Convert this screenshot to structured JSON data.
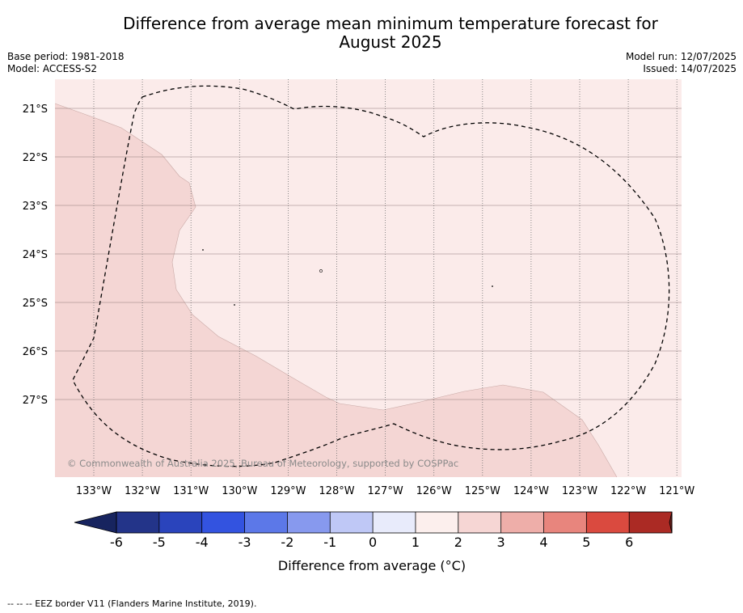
{
  "title_line1": "Difference from average mean minimum temperature forecast for",
  "title_line2": "August 2025",
  "base_period": "Base period: 1981-2018",
  "model": "Model: ACCESS-S2",
  "model_run": "Model run: 12/07/2025",
  "issued": "Issued: 14/07/2025",
  "copyright": "© Commonwealth of Australia 2025, Bureau of Meteorology, supported by COSPPac",
  "footer": "-- -- -- EEZ border V11 (Flanders Marine Institute, 2019).",
  "lat_labels": [
    "21°S",
    "22°S",
    "23°S",
    "24°S",
    "25°S",
    "26°S",
    "27°S"
  ],
  "lon_labels": [
    "133°W",
    "132°W",
    "131°W",
    "130°W",
    "129°W",
    "128°W",
    "127°W",
    "126°W",
    "125°W",
    "124°W",
    "123°W",
    "122°W",
    "121°W"
  ],
  "colorbar": {
    "label": "Difference from average (°C)",
    "ticks": [
      "-6",
      "-5",
      "-4",
      "-3",
      "-2",
      "-1",
      "0",
      "1",
      "2",
      "3",
      "4",
      "5",
      "6"
    ],
    "colors": [
      "#233489",
      "#2a44bc",
      "#3353e0",
      "#5c78e8",
      "#8799ee",
      "#bfc8f6",
      "#e8ebfb",
      "#fcefed",
      "#f6d6d4",
      "#eeaea9",
      "#e8857d",
      "#da4a3f",
      "#ab2a24"
    ],
    "under_color": "#17245f",
    "over_color": "#6f1f1a"
  },
  "map_colors": {
    "zone_0_1": "#fbebea",
    "zone_1_2": "#f4d6d4"
  }
}
